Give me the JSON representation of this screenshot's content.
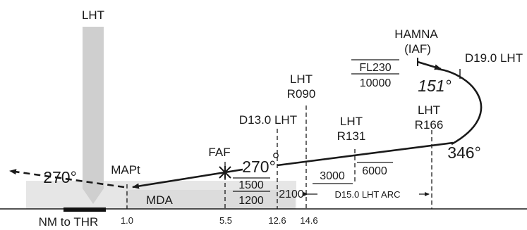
{
  "colors": {
    "ink": "#1a1a1a",
    "terrain_shade": "#e6e6e6",
    "station_beam": "#cfcfcf",
    "runway": "#111111"
  },
  "station": {
    "label": "LHT"
  },
  "iaf": {
    "name": "HAMNA",
    "role": "(IAF)",
    "dme": "D19.0 LHT"
  },
  "holding_altitudes": {
    "upper": "FL230",
    "lower": "10000"
  },
  "headings": {
    "inbound_arc_start": "151°",
    "arc_turn": "346°",
    "final": "270°",
    "missed": "270°"
  },
  "radials": [
    {
      "station": "LHT",
      "radial": "R090"
    },
    {
      "station": "LHT",
      "radial": "R131"
    },
    {
      "station": "LHT",
      "radial": "R166"
    }
  ],
  "fixes": {
    "d13": "D13.0 LHT",
    "faf": "FAF",
    "mapt": "MAPt",
    "mda": "MDA"
  },
  "altitudes": {
    "arc_min": "3000",
    "arc_max": "6000",
    "faf_upper": "1500",
    "faf_lower": "1200",
    "d13": "2100"
  },
  "arc_label": "D15.0 LHT ARC",
  "distance_axis": {
    "label": "NM to THR",
    "ticks": [
      "1.0",
      "5.5",
      "12.6",
      "14.6"
    ]
  }
}
